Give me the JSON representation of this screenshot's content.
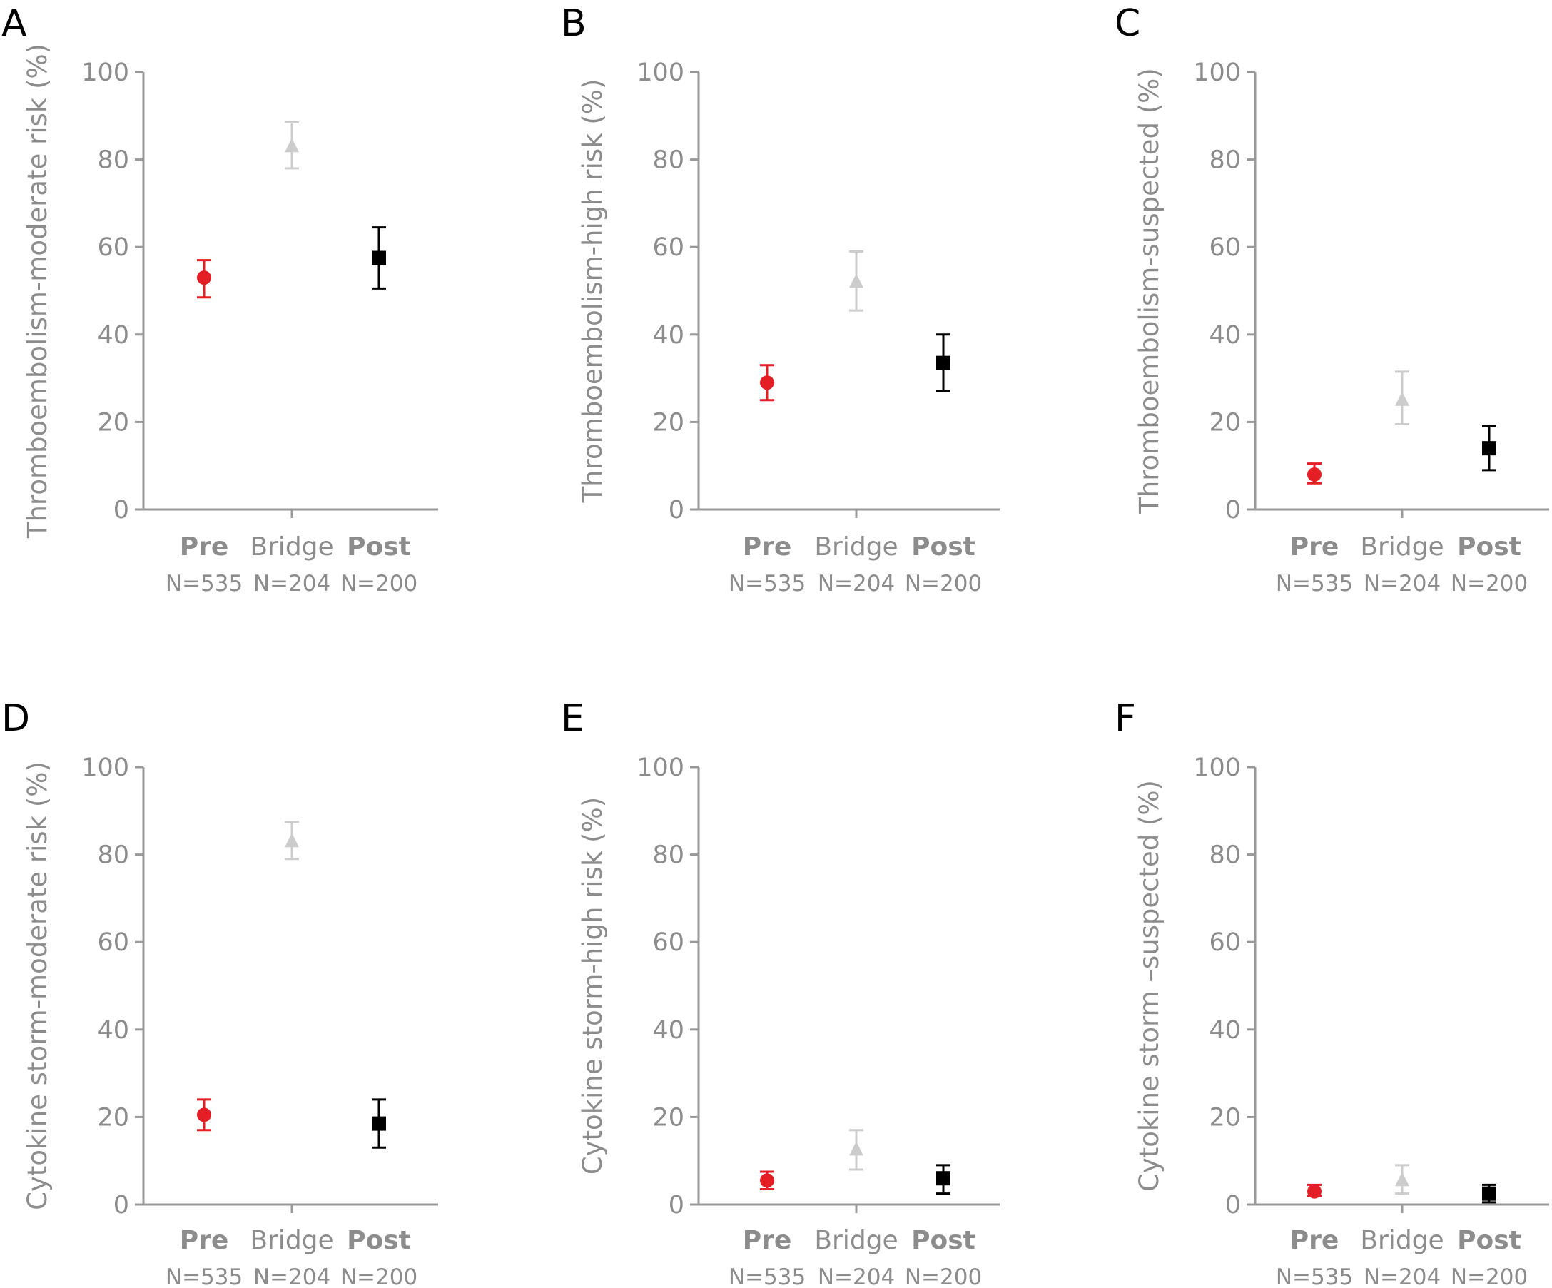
{
  "colors": {
    "axis": "#999999",
    "text": "#8c8c8c",
    "pre": "#e31e24",
    "bridge": "#cccccc",
    "post": "#000000"
  },
  "chart_data": [
    {
      "panel": "A",
      "type": "scatter",
      "ylabel": "Thromboembolism-moderate risk (%)",
      "ylim": [
        0,
        100
      ],
      "yticks": [
        0,
        20,
        40,
        60,
        80,
        100
      ],
      "categories": [
        "Pre",
        "Bridge",
        "Post"
      ],
      "sample_sizes": [
        "N=535",
        "N=204",
        "N=200"
      ],
      "series": [
        {
          "category": "Pre",
          "marker": "circle",
          "y": 53,
          "ci": [
            48.5,
            57
          ]
        },
        {
          "category": "Bridge",
          "marker": "triangle",
          "y": 83,
          "ci": [
            78,
            88.5
          ]
        },
        {
          "category": "Post",
          "marker": "square",
          "y": 57.5,
          "ci": [
            50.5,
            64.5
          ]
        }
      ]
    },
    {
      "panel": "B",
      "type": "scatter",
      "ylabel": "Thromboembolism-high risk (%)",
      "ylim": [
        0,
        100
      ],
      "yticks": [
        0,
        20,
        40,
        60,
        80,
        100
      ],
      "categories": [
        "Pre",
        "Bridge",
        "Post"
      ],
      "sample_sizes": [
        "N=535",
        "N=204",
        "N=200"
      ],
      "series": [
        {
          "category": "Pre",
          "marker": "circle",
          "y": 29,
          "ci": [
            25,
            33
          ]
        },
        {
          "category": "Bridge",
          "marker": "triangle",
          "y": 52,
          "ci": [
            45.5,
            59
          ]
        },
        {
          "category": "Post",
          "marker": "square",
          "y": 33.5,
          "ci": [
            27,
            40
          ]
        }
      ]
    },
    {
      "panel": "C",
      "type": "scatter",
      "ylabel": "Thromboembolism-suspected (%)",
      "ylim": [
        0,
        100
      ],
      "yticks": [
        0,
        20,
        40,
        60,
        80,
        100
      ],
      "categories": [
        "Pre",
        "Bridge",
        "Post"
      ],
      "sample_sizes": [
        "N=535",
        "N=204",
        "N=200"
      ],
      "series": [
        {
          "category": "Pre",
          "marker": "circle",
          "y": 8,
          "ci": [
            6,
            10.5
          ]
        },
        {
          "category": "Bridge",
          "marker": "triangle",
          "y": 25,
          "ci": [
            19.5,
            31.5
          ]
        },
        {
          "category": "Post",
          "marker": "square",
          "y": 14,
          "ci": [
            9,
            19
          ]
        }
      ]
    },
    {
      "panel": "D",
      "type": "scatter",
      "ylabel": "Cytokine storm-moderate risk (%)",
      "ylim": [
        0,
        100
      ],
      "yticks": [
        0,
        20,
        40,
        60,
        80,
        100
      ],
      "categories": [
        "Pre",
        "Bridge",
        "Post"
      ],
      "sample_sizes": [
        "N=535",
        "N=204",
        "N=200"
      ],
      "series": [
        {
          "category": "Pre",
          "marker": "circle",
          "y": 20.5,
          "ci": [
            17,
            24
          ]
        },
        {
          "category": "Bridge",
          "marker": "triangle",
          "y": 83,
          "ci": [
            79,
            87.5
          ]
        },
        {
          "category": "Post",
          "marker": "square",
          "y": 18.5,
          "ci": [
            13,
            24
          ]
        }
      ]
    },
    {
      "panel": "E",
      "type": "scatter",
      "ylabel": "Cytokine storm-high risk (%)",
      "ylim": [
        0,
        100
      ],
      "yticks": [
        0,
        20,
        40,
        60,
        80,
        100
      ],
      "categories": [
        "Pre",
        "Bridge",
        "Post"
      ],
      "sample_sizes": [
        "N=535",
        "N=204",
        "N=200"
      ],
      "series": [
        {
          "category": "Pre",
          "marker": "circle",
          "y": 5.5,
          "ci": [
            3.5,
            7.5
          ]
        },
        {
          "category": "Bridge",
          "marker": "triangle",
          "y": 12.5,
          "ci": [
            8,
            17
          ]
        },
        {
          "category": "Post",
          "marker": "square",
          "y": 6,
          "ci": [
            2.5,
            9
          ]
        }
      ]
    },
    {
      "panel": "F",
      "type": "scatter",
      "ylabel": "Cytokine storm –suspected (%)",
      "ylim": [
        0,
        100
      ],
      "yticks": [
        0,
        20,
        40,
        60,
        80,
        100
      ],
      "categories": [
        "Pre",
        "Bridge",
        "Post"
      ],
      "sample_sizes": [
        "N=535",
        "N=204",
        "N=200"
      ],
      "series": [
        {
          "category": "Pre",
          "marker": "circle",
          "y": 3,
          "ci": [
            2,
            4.5
          ]
        },
        {
          "category": "Bridge",
          "marker": "triangle",
          "y": 5.5,
          "ci": [
            2.5,
            9
          ]
        },
        {
          "category": "Post",
          "marker": "square",
          "y": 2.5,
          "ci": [
            0.5,
            4.5
          ]
        }
      ]
    }
  ]
}
